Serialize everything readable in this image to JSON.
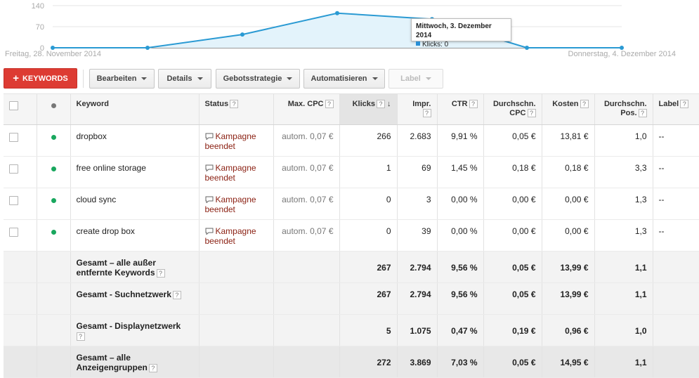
{
  "chart_data": {
    "type": "area",
    "series": [
      {
        "name": "Klicks",
        "values": [
          0,
          0,
          44,
          115,
          95,
          0,
          0
        ]
      }
    ],
    "ylim": [
      0,
      140
    ],
    "yticks": [
      "140",
      "70",
      "0"
    ],
    "start_label": "Freitag, 28. November 2014",
    "end_label": "Donnerstag, 4. Dezember 2014",
    "tooltip": {
      "title": "Mittwoch, 3. Dezember 2014",
      "label": "Klicks: 0"
    },
    "color": "#2a9ad3",
    "fill": "#e3f3fb"
  },
  "toolbar": {
    "add_label": "KEYWORDS",
    "buttons": [
      "Bearbeiten",
      "Details",
      "Gebotsstrategie",
      "Automatisieren",
      "Label"
    ]
  },
  "table": {
    "headers": {
      "keyword": "Keyword",
      "status": "Status",
      "max_cpc": "Max. CPC",
      "clicks": "Klicks",
      "impr": "Impr.",
      "ctr": "CTR",
      "avg_cpc": "Durchschn. CPC",
      "cost": "Kosten",
      "avg_pos": "Durchschn. Pos.",
      "label": "Label"
    },
    "rows": [
      {
        "keyword": "dropbox",
        "status": "Kampagne beendet",
        "max_cpc": "autom. 0,07 €",
        "clicks": "266",
        "impr": "2.683",
        "ctr": "9,91 %",
        "avg_cpc": "0,05 €",
        "cost": "13,81 €",
        "avg_pos": "1,0",
        "label": "--"
      },
      {
        "keyword": "free online storage",
        "status": "Kampagne beendet",
        "max_cpc": "autom. 0,07 €",
        "clicks": "1",
        "impr": "69",
        "ctr": "1,45 %",
        "avg_cpc": "0,18 €",
        "cost": "0,18 €",
        "avg_pos": "3,3",
        "label": "--"
      },
      {
        "keyword": "cloud sync",
        "status": "Kampagne beendet",
        "max_cpc": "autom. 0,07 €",
        "clicks": "0",
        "impr": "3",
        "ctr": "0,00 %",
        "avg_cpc": "0,00 €",
        "cost": "0,00 €",
        "avg_pos": "1,3",
        "label": "--"
      },
      {
        "keyword": "create drop box",
        "status": "Kampagne beendet",
        "max_cpc": "autom. 0,07 €",
        "clicks": "0",
        "impr": "39",
        "ctr": "0,00 %",
        "avg_cpc": "0,00 €",
        "cost": "0,00 €",
        "avg_pos": "1,3",
        "label": "--"
      }
    ],
    "totals": [
      {
        "label": "Gesamt – alle außer entfernte Keywords",
        "clicks": "267",
        "impr": "2.794",
        "ctr": "9,56 %",
        "avg_cpc": "0,05 €",
        "cost": "13,99 €",
        "avg_pos": "1,1"
      },
      {
        "label": "Gesamt - Suchnetzwerk",
        "clicks": "267",
        "impr": "2.794",
        "ctr": "9,56 %",
        "avg_cpc": "0,05 €",
        "cost": "13,99 €",
        "avg_pos": "1,1"
      },
      {
        "label": "Gesamt - Displaynetzwerk",
        "clicks": "5",
        "impr": "1.075",
        "ctr": "0,47 %",
        "avg_cpc": "0,19 €",
        "cost": "0,96 €",
        "avg_pos": "1,0"
      },
      {
        "label": "Gesamt – alle Anzeigengruppen",
        "clicks": "272",
        "impr": "3.869",
        "ctr": "7,03 %",
        "avg_cpc": "0,05 €",
        "cost": "14,95 €",
        "avg_pos": "1,1"
      }
    ]
  },
  "help_glyph": "?"
}
